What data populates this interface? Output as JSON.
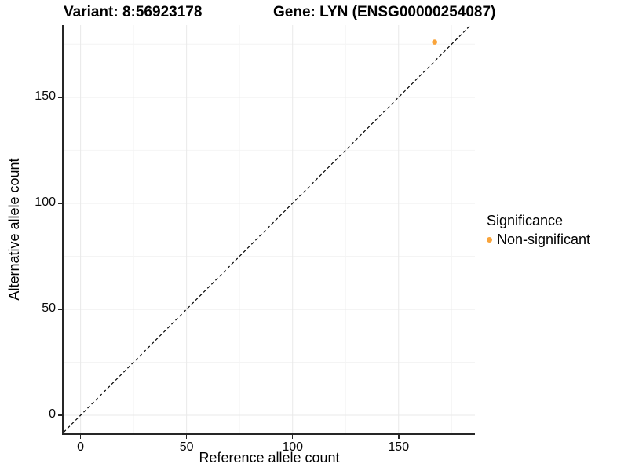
{
  "colors": {
    "point": "#F9A43B",
    "axis": "#262626",
    "grid_major": "#e9e9e9",
    "grid_minor": "#f4f4f4",
    "dashed_line": "#000000",
    "background": "#ffffff",
    "text": "#000000"
  },
  "chart_data": {
    "type": "scatter",
    "title_variant": "Variant: 8:56923178",
    "title_gene": "Gene: LYN (ENSG00000254087)",
    "xlabel": "Reference allele count",
    "ylabel": "Alternative allele count",
    "xlim": [
      -8,
      186
    ],
    "ylim": [
      -8.5,
      184
    ],
    "x_ticks": [
      0,
      50,
      100,
      150
    ],
    "y_ticks": [
      0,
      50,
      100,
      150
    ],
    "x_minor_ticks": [
      25,
      75,
      125,
      175
    ],
    "y_minor_ticks": [
      25,
      75,
      125,
      175
    ],
    "grid": "major and minor, very light gray, white background",
    "identity_line": {
      "type": "y=x",
      "style": "dashed",
      "color": "#000000"
    },
    "points": [
      {
        "x": 167,
        "y": 176,
        "significance": "Non-significant",
        "color": "#F9A43B",
        "radius": 3.3
      }
    ],
    "legend": {
      "title": "Significance",
      "position": "right",
      "entries": [
        {
          "label": "Non-significant",
          "color": "#F9A43B",
          "marker": "circle"
        }
      ]
    }
  }
}
